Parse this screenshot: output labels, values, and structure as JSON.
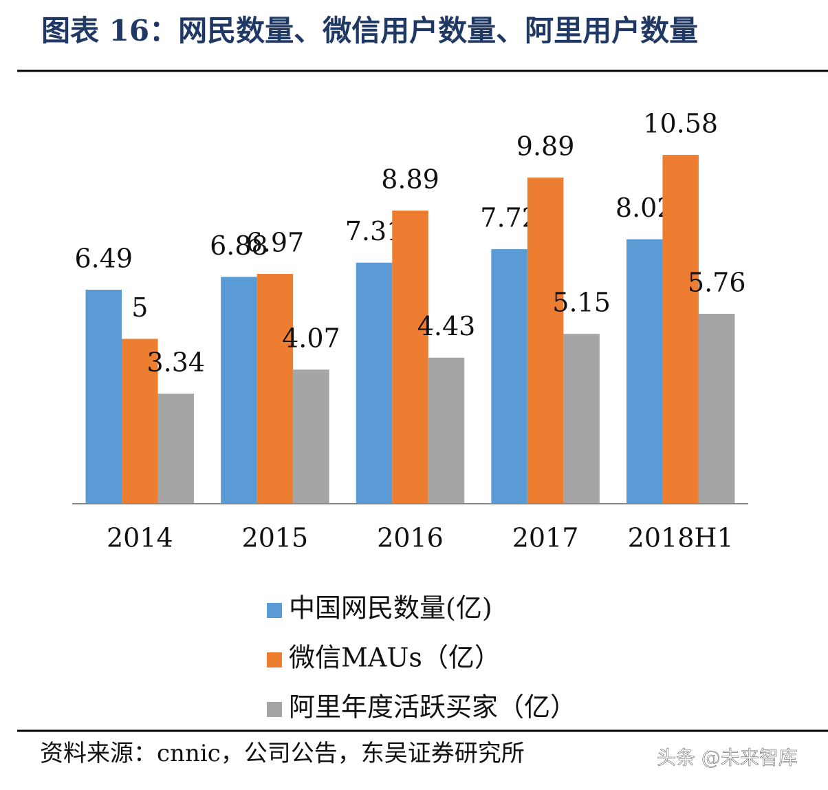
{
  "chart_data": {
    "type": "bar",
    "title": "图表 16：网民数量、微信用户数量、阿里用户数量",
    "categories": [
      "2014",
      "2015",
      "2016",
      "2017",
      "2018H1"
    ],
    "series": [
      {
        "name": "中国网民数量(亿)",
        "color": "#5b9bd5",
        "values": [
          6.49,
          6.88,
          7.31,
          7.72,
          8.02
        ]
      },
      {
        "name": "微信MAUs（亿）",
        "color": "#ed7d31",
        "values": [
          5,
          6.97,
          8.89,
          9.89,
          10.58
        ]
      },
      {
        "name": "阿里年度活跃买家（亿）",
        "color": "#a5a5a5",
        "values": [
          3.34,
          4.07,
          4.43,
          5.15,
          5.76
        ]
      }
    ],
    "ylim": [
      0,
      12
    ],
    "legend": "bottom",
    "source": "资料来源：cnnic，公司公告，东吴证券研究所",
    "watermark": "头条 @未来智库"
  }
}
